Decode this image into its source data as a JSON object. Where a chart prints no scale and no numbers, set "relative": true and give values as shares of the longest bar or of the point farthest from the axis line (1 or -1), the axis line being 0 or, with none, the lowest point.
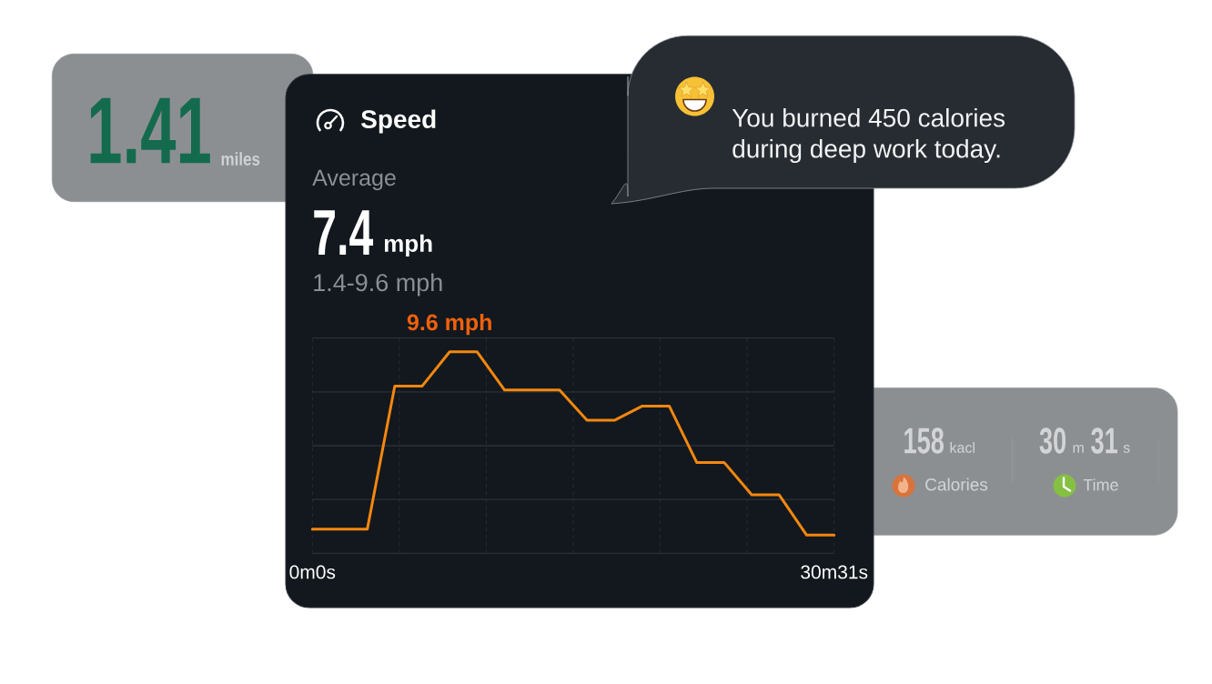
{
  "chart_data": {
    "type": "line",
    "title": "Speed",
    "relative": true,
    "annotations": [
      "Average",
      "7.4",
      "mph",
      "1.4-9.6 mph",
      "9.6 mph",
      "1.41",
      "miles",
      "You burned 450 calories during deep work today.",
      "158",
      "kacl",
      "Calories",
      "30",
      "m",
      "31",
      "s",
      "Time"
    ],
    "categories": [
      "0m0s",
      null,
      null,
      null,
      null,
      null,
      null,
      null,
      null,
      null,
      null,
      null,
      null,
      null,
      null,
      null,
      null,
      null,
      null,
      "30m31s"
    ],
    "series": [
      {
        "color": "#f5870f",
        "values": [
          0.12,
          0.12,
          0.12,
          0.83,
          0.83,
          1,
          1,
          0.81,
          0.81,
          0.81,
          0.66,
          0.66,
          0.73,
          0.73,
          0.45,
          0.45,
          0.29,
          0.29,
          0.09,
          0.09
        ]
      }
    ],
    "grid": true,
    "tick_labels": "x"
  }
}
